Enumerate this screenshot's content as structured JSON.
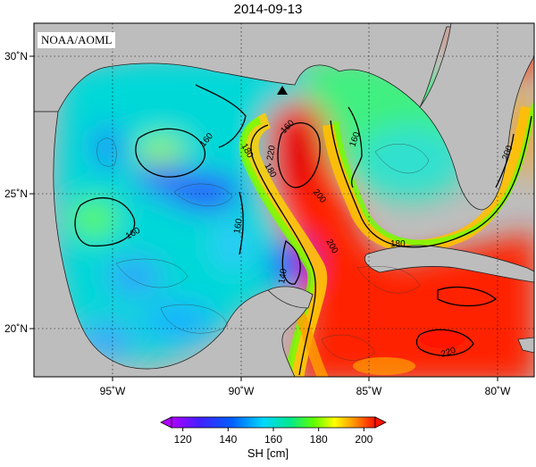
{
  "title": "2014-09-13",
  "credit": "NOAA/AOML",
  "colorbar": {
    "label": "SH [cm]",
    "ticks": [
      "120",
      "140",
      "160",
      "180",
      "200"
    ],
    "range": [
      115,
      205
    ]
  },
  "axes": {
    "lon_ticks": [
      "95˚W",
      "90˚W",
      "85˚W",
      "80˚W"
    ],
    "lat_ticks": [
      "30˚N",
      "25˚N",
      "20˚N"
    ]
  },
  "contour_labels": [
    "160",
    "160",
    "160",
    "160",
    "160",
    "180",
    "180",
    "180",
    "200",
    "200",
    "200",
    "220",
    "220",
    "140"
  ],
  "colors": {
    "land": "#bdbdbd",
    "c120": "#b000ff",
    "c140": "#1030ff",
    "c160": "#00e0ff",
    "c180": "#c8ff00",
    "c200": "#ff2000"
  }
}
